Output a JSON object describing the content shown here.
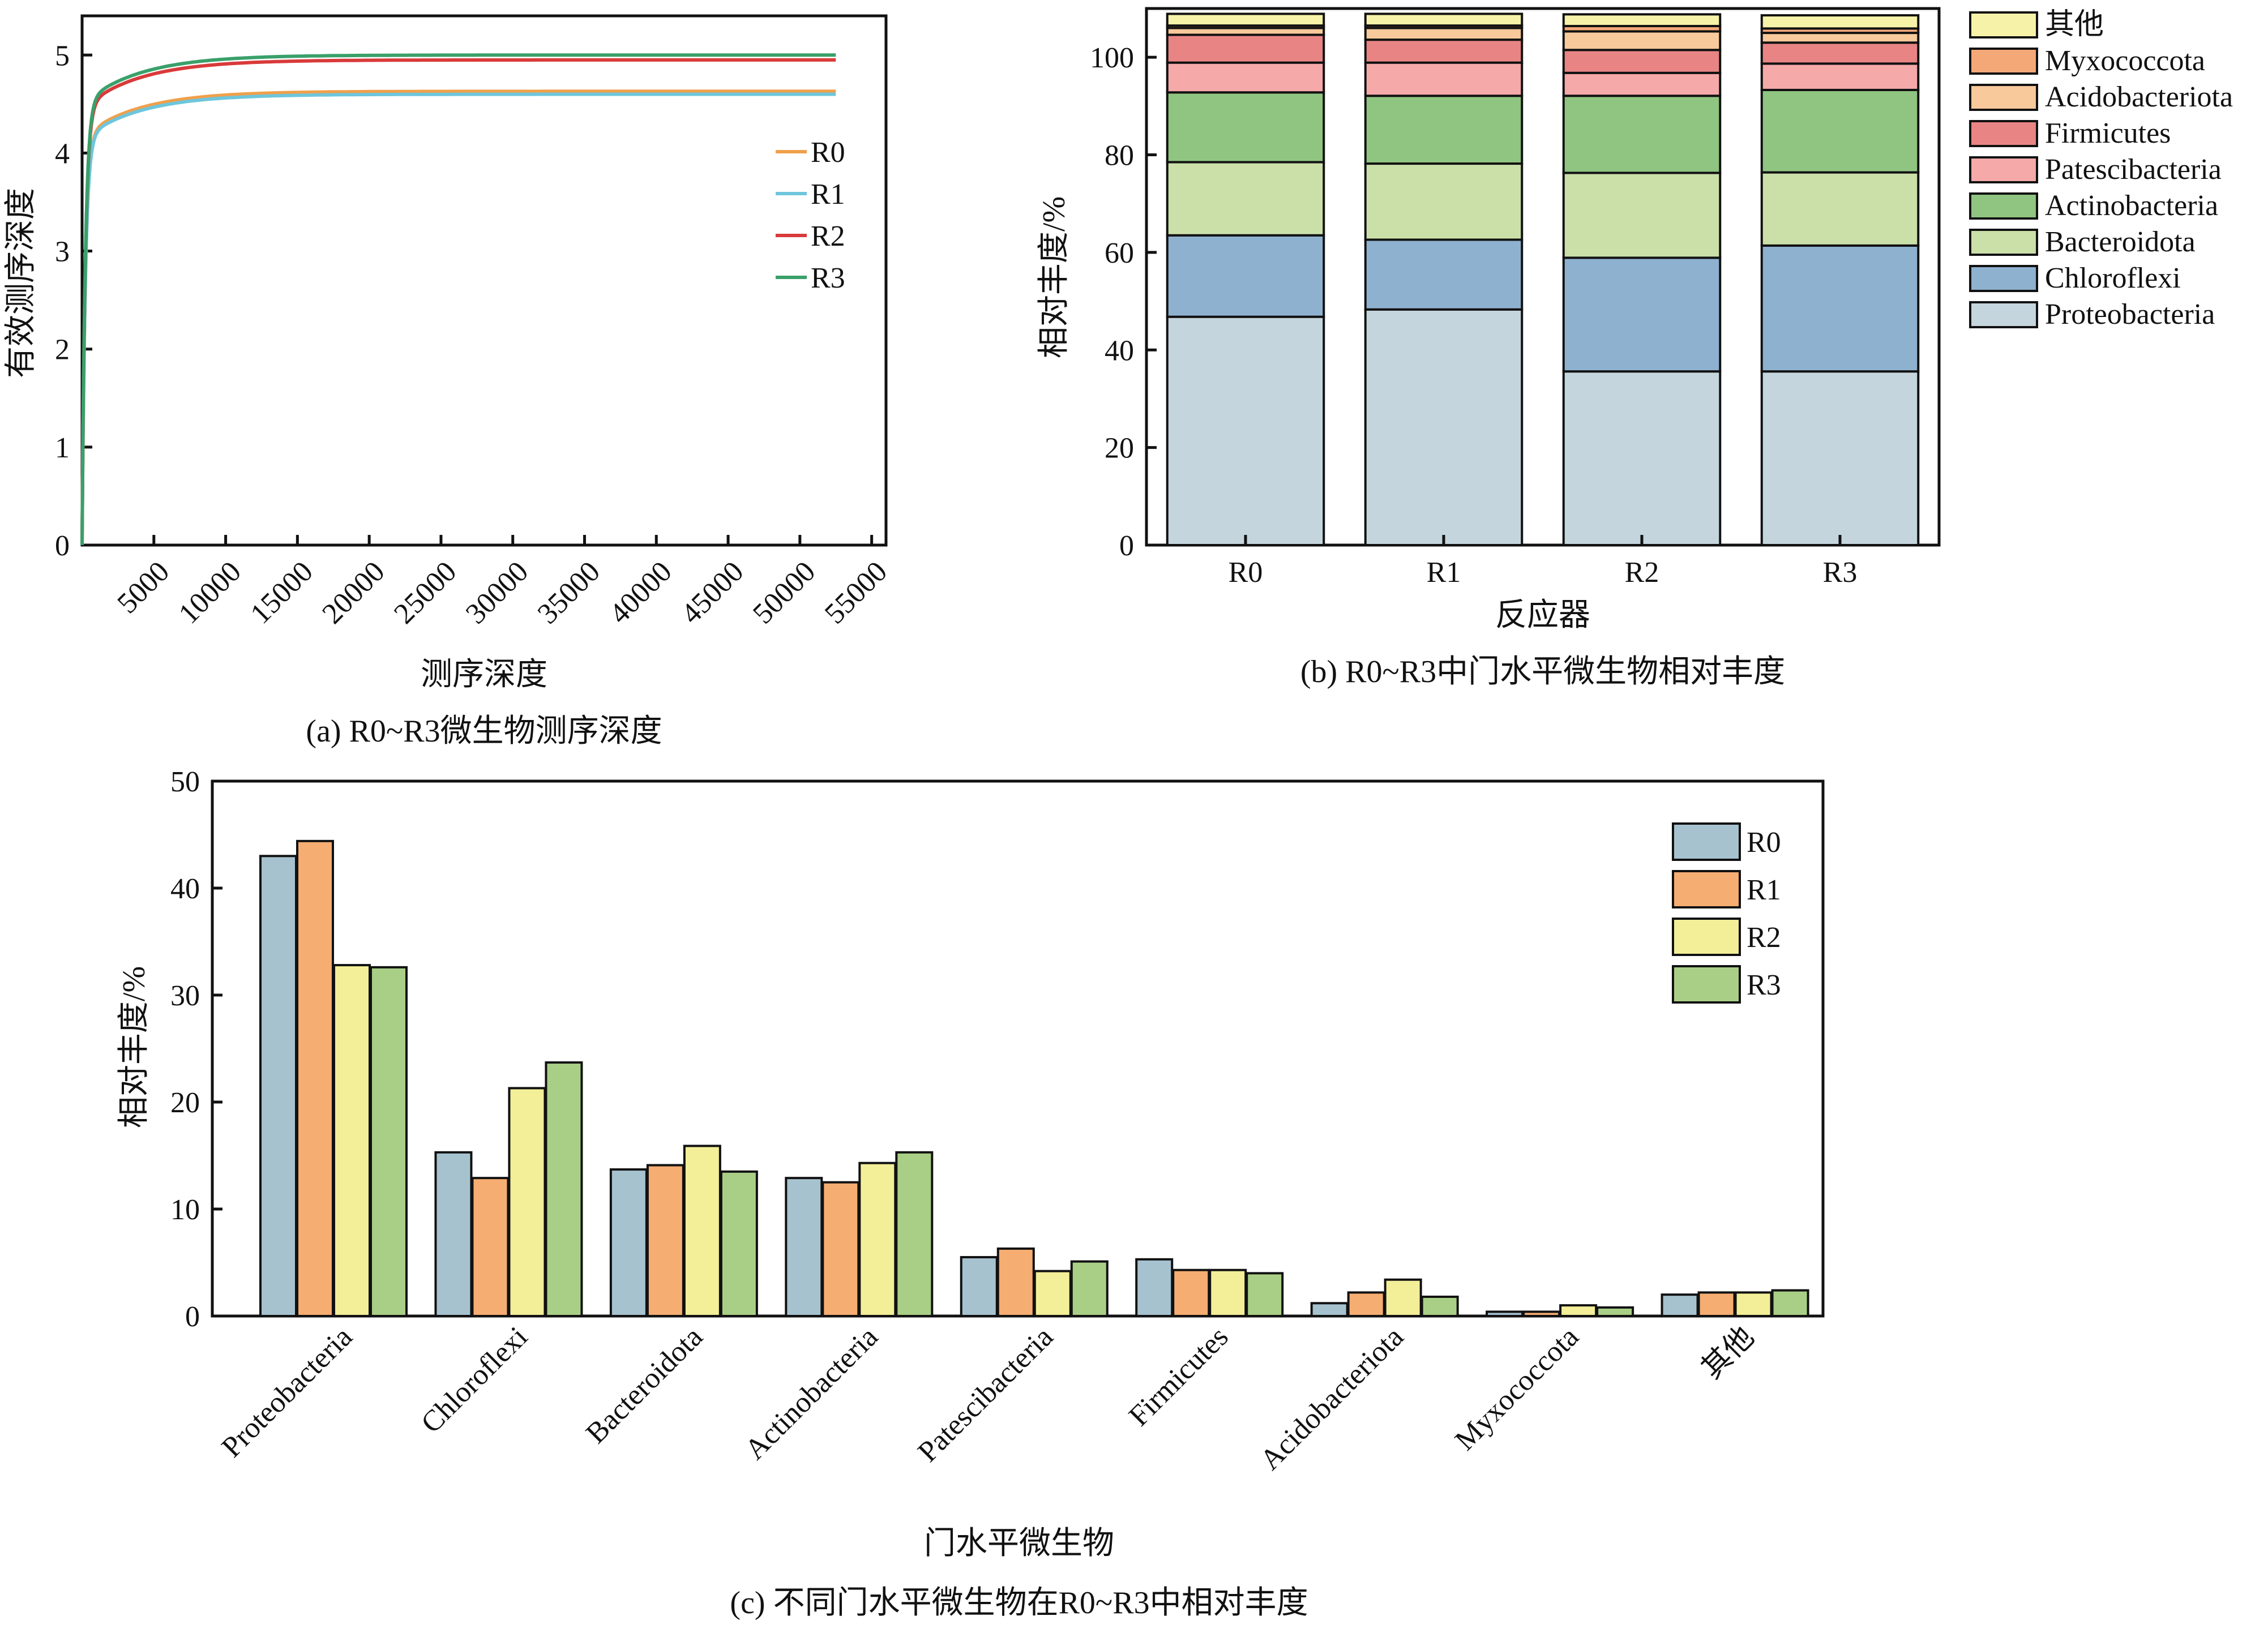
{
  "figure": {
    "captions": {
      "a": "(a) R0~R3微生物测序深度",
      "b": "(b) R0~R3中门水平微生物相对丰度",
      "c": "(c) 不同门水平微生物在R0~R3中相对丰度"
    }
  },
  "chart_data": [
    {
      "id": "a",
      "type": "line",
      "title": "(a) R0~R3微生物测序深度",
      "xlabel": "测序深度",
      "ylabel": "有效测序深度",
      "xlim": [
        0,
        56000
      ],
      "ylim": [
        0,
        5.4
      ],
      "xticks": [
        5000,
        10000,
        15000,
        20000,
        25000,
        30000,
        35000,
        40000,
        45000,
        50000,
        55000
      ],
      "yticks": [
        0,
        1,
        2,
        3,
        4,
        5
      ],
      "legend_position": "right",
      "series": [
        {
          "name": "R0",
          "color": "#f0a04b",
          "plateau": 4.63
        },
        {
          "name": "R1",
          "color": "#6ec6dc",
          "plateau": 4.6
        },
        {
          "name": "R2",
          "color": "#d93a3a",
          "plateau": 4.95
        },
        {
          "name": "R3",
          "color": "#3aa06a",
          "plateau": 5.0
        }
      ],
      "x_max_data": 52500
    },
    {
      "id": "b",
      "type": "bar",
      "stacked": true,
      "title": "(b) R0~R3中门水平微生物相对丰度",
      "xlabel": "反应器",
      "ylabel": "相对丰度/%",
      "ylim": [
        0,
        110
      ],
      "yticks": [
        0,
        20,
        40,
        60,
        80,
        100
      ],
      "categories": [
        "R0",
        "R1",
        "R2",
        "R3"
      ],
      "legend_position": "right",
      "series": [
        {
          "name": "Proteobacteria",
          "color": "#c5d5de",
          "values": [
            46.8,
            48.3,
            35.6,
            35.6
          ]
        },
        {
          "name": "Chloroflexi",
          "color": "#8eb1d0",
          "values": [
            16.7,
            14.3,
            23.3,
            25.8
          ]
        },
        {
          "name": "Bacteroidota",
          "color": "#cbe0a9",
          "values": [
            15.0,
            15.6,
            17.4,
            15.0
          ]
        },
        {
          "name": "Actinobacteria",
          "color": "#8fc580",
          "values": [
            14.3,
            13.9,
            15.8,
            16.9
          ]
        },
        {
          "name": "Patescibacteria",
          "color": "#f5a9a9",
          "values": [
            6.1,
            6.8,
            4.7,
            5.4
          ]
        },
        {
          "name": "Firmicutes",
          "color": "#e88584",
          "values": [
            5.7,
            4.7,
            4.7,
            4.3
          ]
        },
        {
          "name": "Acidobacteriota",
          "color": "#f8c99a",
          "values": [
            1.4,
            2.4,
            3.8,
            2.0
          ]
        },
        {
          "name": "Myxococcota",
          "color": "#f4a878",
          "values": [
            0.5,
            0.5,
            1.1,
            0.9
          ]
        },
        {
          "name": "其他",
          "color": "#f6f2a8",
          "values": [
            2.4,
            2.4,
            2.4,
            2.7
          ]
        }
      ]
    },
    {
      "id": "c",
      "type": "bar",
      "title": "(c) 不同门水平微生物在R0~R3中相对丰度",
      "xlabel": "门水平微生物",
      "ylabel": "相对丰度/%",
      "ylim": [
        0,
        50
      ],
      "yticks": [
        0,
        10,
        20,
        30,
        40,
        50
      ],
      "categories": [
        "Proteobacteria",
        "Chloroflexi",
        "Bacteroidota",
        "Actinobacteria",
        "Patescibacteria",
        "Firmicutes",
        "Acidobacteriota",
        "Myxococcota",
        "其他"
      ],
      "legend_position": "top-right",
      "series": [
        {
          "name": "R0",
          "color": "#a6c2cf",
          "values": [
            43.0,
            15.3,
            13.7,
            12.9,
            5.5,
            5.3,
            1.2,
            0.4,
            2.0
          ]
        },
        {
          "name": "R1",
          "color": "#f5ad72",
          "values": [
            44.4,
            12.9,
            14.1,
            12.5,
            6.3,
            4.3,
            2.2,
            0.4,
            2.2
          ]
        },
        {
          "name": "R2",
          "color": "#f3ef98",
          "values": [
            32.8,
            21.3,
            15.9,
            14.3,
            4.2,
            4.3,
            3.4,
            1.0,
            2.2
          ]
        },
        {
          "name": "R3",
          "color": "#a9cf86",
          "values": [
            32.6,
            23.7,
            13.5,
            15.3,
            5.1,
            4.0,
            1.8,
            0.8,
            2.4
          ]
        }
      ]
    }
  ]
}
